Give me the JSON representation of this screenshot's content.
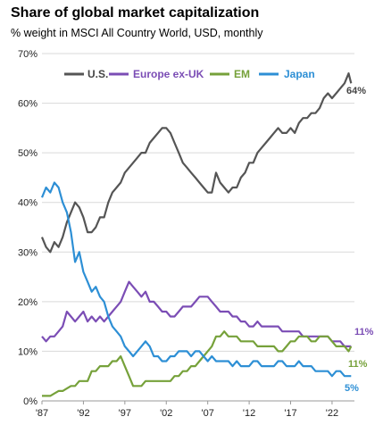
{
  "chart_data": {
    "type": "line",
    "title": "Share of global market capitalization",
    "subtitle": "% weight in MSCI All Country World, USD, monthly",
    "xlabel": "",
    "ylabel": "",
    "xlim": [
      1987.0,
      2024.7
    ],
    "ylim": [
      0,
      70
    ],
    "y_ticks": [
      0,
      10,
      20,
      30,
      40,
      50,
      60,
      70
    ],
    "y_tick_labels": [
      "0%",
      "10%",
      "20%",
      "30%",
      "40%",
      "50%",
      "60%",
      "70%"
    ],
    "x_ticks": [
      1987,
      1992,
      1997,
      2002,
      2007,
      2012,
      2017,
      2022
    ],
    "x_tick_labels": [
      "'87",
      "'92",
      "'97",
      "'02",
      "'07",
      "'12",
      "'17",
      "'22"
    ],
    "grid": "horizontal",
    "legend_position": "top",
    "series": [
      {
        "name": "U.S.",
        "color": "#555555",
        "end_label": "64%",
        "x": [
          1987.0,
          1987.5,
          1988.0,
          1988.5,
          1989.0,
          1989.5,
          1990.0,
          1990.5,
          1991.0,
          1991.5,
          1992.0,
          1992.5,
          1993.0,
          1993.5,
          1994.0,
          1994.5,
          1995.0,
          1995.5,
          1996.0,
          1996.5,
          1997.0,
          1997.5,
          1998.0,
          1998.5,
          1999.0,
          1999.5,
          2000.0,
          2000.5,
          2001.0,
          2001.5,
          2002.0,
          2002.5,
          2003.0,
          2003.5,
          2004.0,
          2004.5,
          2005.0,
          2005.5,
          2006.0,
          2006.5,
          2007.0,
          2007.5,
          2008.0,
          2008.5,
          2009.0,
          2009.5,
          2010.0,
          2010.5,
          2011.0,
          2011.5,
          2012.0,
          2012.5,
          2013.0,
          2013.5,
          2014.0,
          2014.5,
          2015.0,
          2015.5,
          2016.0,
          2016.5,
          2017.0,
          2017.5,
          2018.0,
          2018.5,
          2019.0,
          2019.5,
          2020.0,
          2020.5,
          2021.0,
          2021.5,
          2022.0,
          2022.5,
          2023.0,
          2023.5,
          2024.0,
          2024.3
        ],
        "values": [
          33,
          31,
          30,
          32,
          31,
          33,
          36,
          38,
          40,
          39,
          37,
          34,
          34,
          35,
          37,
          37,
          40,
          42,
          43,
          44,
          46,
          47,
          48,
          49,
          50,
          50,
          52,
          53,
          54,
          55,
          55,
          54,
          52,
          50,
          48,
          47,
          46,
          45,
          44,
          43,
          42,
          42,
          46,
          44,
          43,
          42,
          43,
          43,
          45,
          46,
          48,
          48,
          50,
          51,
          52,
          53,
          54,
          55,
          54,
          54,
          55,
          54,
          56,
          57,
          57,
          58,
          58,
          59,
          61,
          62,
          61,
          62,
          63,
          64,
          66,
          64
        ]
      },
      {
        "name": "Europe ex-UK",
        "color": "#7b4db5",
        "end_label": "11%",
        "x": [
          1987.0,
          1987.5,
          1988.0,
          1988.5,
          1989.0,
          1989.5,
          1990.0,
          1990.5,
          1991.0,
          1991.5,
          1992.0,
          1992.5,
          1993.0,
          1993.5,
          1994.0,
          1994.5,
          1995.0,
          1995.5,
          1996.0,
          1996.5,
          1997.0,
          1997.5,
          1998.0,
          1998.5,
          1999.0,
          1999.5,
          2000.0,
          2000.5,
          2001.0,
          2001.5,
          2002.0,
          2002.5,
          2003.0,
          2003.5,
          2004.0,
          2004.5,
          2005.0,
          2005.5,
          2006.0,
          2006.5,
          2007.0,
          2007.5,
          2008.0,
          2008.5,
          2009.0,
          2009.5,
          2010.0,
          2010.5,
          2011.0,
          2011.5,
          2012.0,
          2012.5,
          2013.0,
          2013.5,
          2014.0,
          2014.5,
          2015.0,
          2015.5,
          2016.0,
          2016.5,
          2017.0,
          2017.5,
          2018.0,
          2018.5,
          2019.0,
          2019.5,
          2020.0,
          2020.5,
          2021.0,
          2021.5,
          2022.0,
          2022.5,
          2023.0,
          2023.5,
          2024.0,
          2024.3
        ],
        "values": [
          13,
          12,
          13,
          13,
          14,
          15,
          18,
          17,
          16,
          17,
          18,
          16,
          17,
          16,
          17,
          16,
          17,
          18,
          19,
          20,
          22,
          24,
          23,
          22,
          21,
          22,
          20,
          20,
          19,
          18,
          18,
          17,
          17,
          18,
          19,
          19,
          19,
          20,
          21,
          21,
          21,
          20,
          19,
          18,
          18,
          18,
          17,
          17,
          16,
          16,
          15,
          15,
          16,
          15,
          15,
          15,
          15,
          15,
          14,
          14,
          14,
          14,
          14,
          13,
          13,
          13,
          13,
          13,
          13,
          13,
          12,
          12,
          12,
          11,
          11,
          11
        ]
      },
      {
        "name": "EM",
        "color": "#76a13a",
        "end_label": "11%",
        "x": [
          1987.0,
          1987.5,
          1988.0,
          1988.5,
          1989.0,
          1989.5,
          1990.0,
          1990.5,
          1991.0,
          1991.5,
          1992.0,
          1992.5,
          1993.0,
          1993.5,
          1994.0,
          1994.5,
          1995.0,
          1995.5,
          1996.0,
          1996.5,
          1997.0,
          1997.5,
          1998.0,
          1998.5,
          1999.0,
          1999.5,
          2000.0,
          2000.5,
          2001.0,
          2001.5,
          2002.0,
          2002.5,
          2003.0,
          2003.5,
          2004.0,
          2004.5,
          2005.0,
          2005.5,
          2006.0,
          2006.5,
          2007.0,
          2007.5,
          2008.0,
          2008.5,
          2009.0,
          2009.5,
          2010.0,
          2010.5,
          2011.0,
          2011.5,
          2012.0,
          2012.5,
          2013.0,
          2013.5,
          2014.0,
          2014.5,
          2015.0,
          2015.5,
          2016.0,
          2016.5,
          2017.0,
          2017.5,
          2018.0,
          2018.5,
          2019.0,
          2019.5,
          2020.0,
          2020.5,
          2021.0,
          2021.5,
          2022.0,
          2022.5,
          2023.0,
          2023.5,
          2024.0,
          2024.3
        ],
        "values": [
          1,
          1,
          1,
          1.5,
          2,
          2,
          2.5,
          3,
          3,
          4,
          4,
          4,
          6,
          6,
          7,
          7,
          7,
          8,
          8,
          9,
          7,
          5,
          3,
          3,
          3,
          4,
          4,
          4,
          4,
          4,
          4,
          4,
          5,
          5,
          6,
          6,
          7,
          7,
          8,
          9,
          10,
          11,
          13,
          13,
          14,
          13,
          13,
          13,
          12,
          12,
          12,
          12,
          11,
          11,
          11,
          11,
          11,
          10,
          10,
          11,
          12,
          12,
          13,
          13,
          13,
          12,
          12,
          13,
          13,
          13,
          12,
          11,
          11,
          11,
          10,
          11
        ]
      },
      {
        "name": "Japan",
        "color": "#2d8fd5",
        "end_label": "5%",
        "x": [
          1987.0,
          1987.5,
          1988.0,
          1988.5,
          1989.0,
          1989.5,
          1990.0,
          1990.5,
          1991.0,
          1991.5,
          1992.0,
          1992.5,
          1993.0,
          1993.5,
          1994.0,
          1994.5,
          1995.0,
          1995.5,
          1996.0,
          1996.5,
          1997.0,
          1997.5,
          1998.0,
          1998.5,
          1999.0,
          1999.5,
          2000.0,
          2000.5,
          2001.0,
          2001.5,
          2002.0,
          2002.5,
          2003.0,
          2003.5,
          2004.0,
          2004.5,
          2005.0,
          2005.5,
          2006.0,
          2006.5,
          2007.0,
          2007.5,
          2008.0,
          2008.5,
          2009.0,
          2009.5,
          2010.0,
          2010.5,
          2011.0,
          2011.5,
          2012.0,
          2012.5,
          2013.0,
          2013.5,
          2014.0,
          2014.5,
          2015.0,
          2015.5,
          2016.0,
          2016.5,
          2017.0,
          2017.5,
          2018.0,
          2018.5,
          2019.0,
          2019.5,
          2020.0,
          2020.5,
          2021.0,
          2021.5,
          2022.0,
          2022.5,
          2023.0,
          2023.5,
          2024.0,
          2024.3
        ],
        "values": [
          41,
          43,
          42,
          44,
          43,
          40,
          38,
          34,
          28,
          30,
          26,
          24,
          22,
          23,
          21,
          20,
          17,
          15,
          14,
          13,
          11,
          10,
          9,
          10,
          11,
          12,
          11,
          9,
          9,
          8,
          8,
          9,
          9,
          10,
          10,
          10,
          9,
          10,
          10,
          9,
          8,
          9,
          8,
          8,
          8,
          8,
          7,
          8,
          7,
          7,
          7,
          8,
          8,
          7,
          7,
          7,
          7,
          8,
          8,
          7,
          7,
          7,
          8,
          7,
          7,
          7,
          6,
          6,
          6,
          6,
          5,
          6,
          6,
          5,
          5,
          5
        ]
      }
    ]
  }
}
